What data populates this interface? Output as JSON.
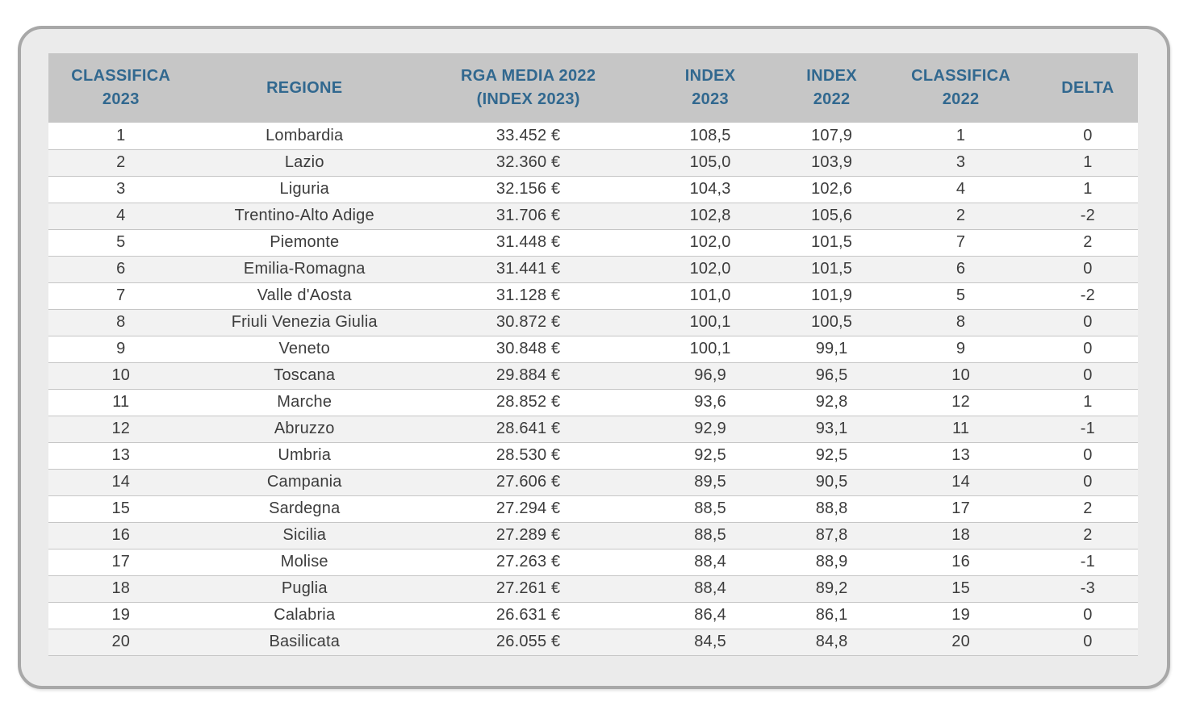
{
  "chart_data": {
    "type": "table",
    "columns": [
      {
        "id": "classifica_2023",
        "label": "CLASSIFICA\n2023"
      },
      {
        "id": "regione",
        "label": "REGIONE"
      },
      {
        "id": "rga_media_2022",
        "label": "RGA MEDIA 2022\n(INDEX 2023)"
      },
      {
        "id": "index_2023",
        "label": "INDEX\n2023"
      },
      {
        "id": "index_2022",
        "label": "INDEX\n2022"
      },
      {
        "id": "classifica_2022",
        "label": "CLASSIFICA\n2022"
      },
      {
        "id": "delta",
        "label": "DELTA"
      }
    ],
    "rows": [
      [
        "1",
        "Lombardia",
        "33.452 €",
        "108,5",
        "107,9",
        "1",
        "0"
      ],
      [
        "2",
        "Lazio",
        "32.360 €",
        "105,0",
        "103,9",
        "3",
        "1"
      ],
      [
        "3",
        "Liguria",
        "32.156 €",
        "104,3",
        "102,6",
        "4",
        "1"
      ],
      [
        "4",
        "Trentino-Alto Adige",
        "31.706 €",
        "102,8",
        "105,6",
        "2",
        "-2"
      ],
      [
        "5",
        "Piemonte",
        "31.448 €",
        "102,0",
        "101,5",
        "7",
        "2"
      ],
      [
        "6",
        "Emilia-Romagna",
        "31.441 €",
        "102,0",
        "101,5",
        "6",
        "0"
      ],
      [
        "7",
        "Valle d'Aosta",
        "31.128 €",
        "101,0",
        "101,9",
        "5",
        "-2"
      ],
      [
        "8",
        "Friuli Venezia Giulia",
        "30.872 €",
        "100,1",
        "100,5",
        "8",
        "0"
      ],
      [
        "9",
        "Veneto",
        "30.848 €",
        "100,1",
        "99,1",
        "9",
        "0"
      ],
      [
        "10",
        "Toscana",
        "29.884 €",
        "96,9",
        "96,5",
        "10",
        "0"
      ],
      [
        "11",
        "Marche",
        "28.852 €",
        "93,6",
        "92,8",
        "12",
        "1"
      ],
      [
        "12",
        "Abruzzo",
        "28.641 €",
        "92,9",
        "93,1",
        "11",
        "-1"
      ],
      [
        "13",
        "Umbria",
        "28.530 €",
        "92,5",
        "92,5",
        "13",
        "0"
      ],
      [
        "14",
        "Campania",
        "27.606 €",
        "89,5",
        "90,5",
        "14",
        "0"
      ],
      [
        "15",
        "Sardegna",
        "27.294 €",
        "88,5",
        "88,8",
        "17",
        "2"
      ],
      [
        "16",
        "Sicilia",
        "27.289 €",
        "88,5",
        "87,8",
        "18",
        "2"
      ],
      [
        "17",
        "Molise",
        "27.263 €",
        "88,4",
        "88,9",
        "16",
        "-1"
      ],
      [
        "18",
        "Puglia",
        "27.261 €",
        "88,4",
        "89,2",
        "15",
        "-3"
      ],
      [
        "19",
        "Calabria",
        "26.631 €",
        "86,4",
        "86,1",
        "19",
        "0"
      ],
      [
        "20",
        "Basilicata",
        "26.055 €",
        "84,5",
        "84,8",
        "20",
        "0"
      ]
    ]
  },
  "colors": {
    "card_bg": "#ebebeb",
    "card_border": "#a8a8a8",
    "header_bg": "#c6c6c6",
    "header_text": "#31688f",
    "row_bg": "#ffffff",
    "row_alt_bg": "#f2f2f2",
    "row_divider": "#c6c6c6",
    "body_text": "#3c3c3c"
  }
}
